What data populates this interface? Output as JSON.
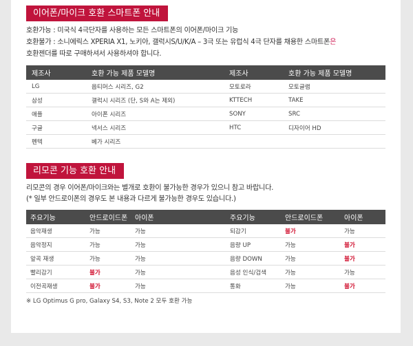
{
  "section1": {
    "title": "이어폰/마이크 호환 스마트폰 안내",
    "line1": "호환가능 : 미국식 4극단자를 사용하는 모든 스마트폰의 이어폰/마이크 기능",
    "line2_prefix": "호환불가 : 소니에릭스 XPERIA X1, 노키아, 갤럭시S/U/K/A – 3극 또는 유럽식 4극 단자를 채용한 스마트폰",
    "line2_suffix": "은",
    "line3": "호환젠더를 따로 구매하셔서 사용하셔야 합니다.",
    "headers": [
      "제조사",
      "호환 가능 제품 모델명",
      "제조사",
      "호환 가능 제품 모델명"
    ],
    "rows": [
      [
        "LG",
        "옵티머스 시리즈, G2",
        "모토로라",
        "모토글램"
      ],
      [
        "삼성",
        "갤럭시 시리즈 (단, S와 A는 제외)",
        "KTTECH",
        "TAKE"
      ],
      [
        "애플",
        "아이폰 시리즈",
        "SONY",
        "SRC"
      ],
      [
        "구글",
        "넥서스 시리즈",
        "HTC",
        "디자이어 HD"
      ],
      [
        "펜텍",
        "베가 시리즈",
        "",
        ""
      ]
    ]
  },
  "section2": {
    "title": "리모콘 기능 호환 안내",
    "line1": "리모콘의 경우 이어폰/마이크와는 별개로 호환이 불가능한 경우가 있으니 참고 바랍니다.",
    "line2": "(*  일부 안드로이폰의 경우도 본 내용과 다르게 불가능한 경우도 있습니다.)",
    "headers": [
      "주요기능",
      "안드로이드폰",
      "아이폰",
      "주요기능",
      "안드로이드폰",
      "아이폰"
    ],
    "rows": [
      [
        "음악재생",
        "가능",
        "가능",
        "되감기",
        "불가",
        "가능"
      ],
      [
        "음악정지",
        "가능",
        "가능",
        "음량 UP",
        "가능",
        "불가"
      ],
      [
        "앞곡 재생",
        "가능",
        "가능",
        "음량 DOWN",
        "가능",
        "불가"
      ],
      [
        "빨리감기",
        "불가",
        "가능",
        "음성 인식/검색",
        "가능",
        "가능"
      ],
      [
        "이전곡재생",
        "불가",
        "가능",
        "통화",
        "가능",
        "불가"
      ]
    ],
    "note": "※ LG Optimus G pro, Galaxy S4, S3, Note 2 모두 호환 가능",
    "red_value": "불가"
  },
  "colors": {
    "accent": "#c0143c",
    "header_bg": "#4b4b4b",
    "highlight_text": "#d0225a"
  }
}
